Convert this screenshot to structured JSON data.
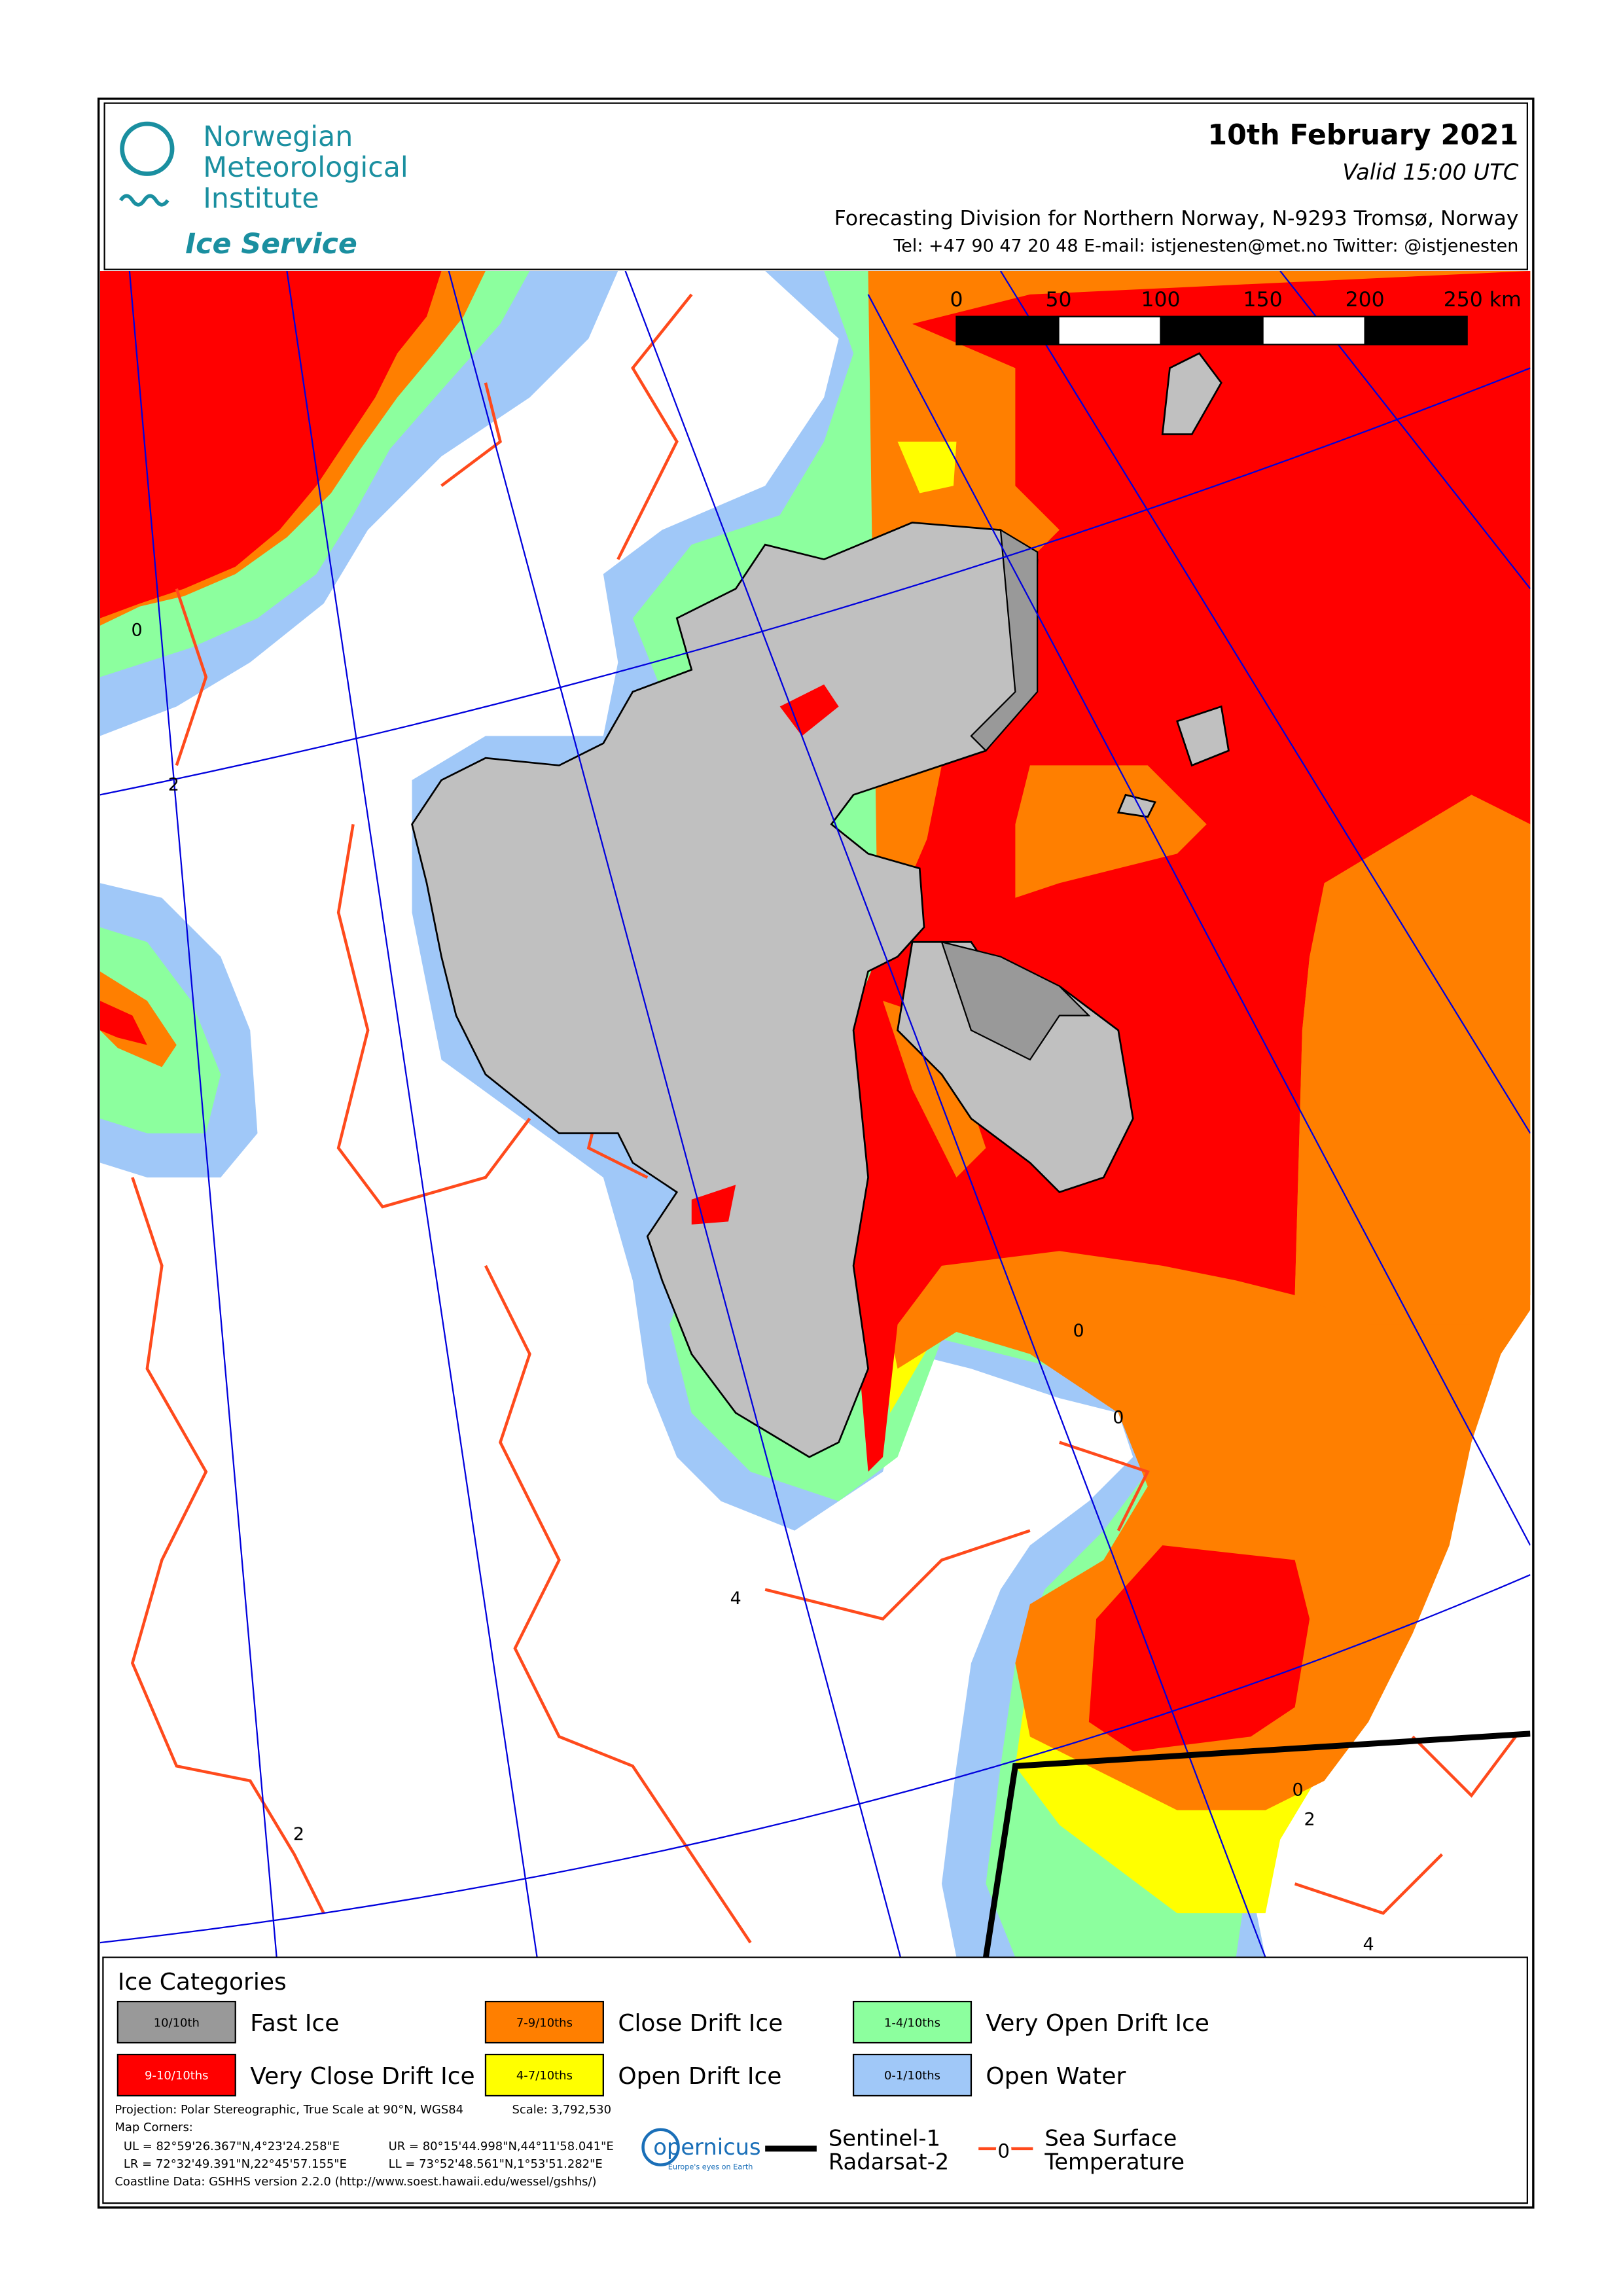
{
  "header": {
    "org": [
      "Norwegian",
      "Meteorological",
      "Institute"
    ],
    "service": "Ice Service",
    "date": "10th February 2021",
    "valid": "Valid 15:00 UTC",
    "division": "Forecasting Division for Northern Norway, N-9293 Tromsø, Norway",
    "contact": "Tel: +47 90 47 20 48   E-mail: istjenesten@met.no   Twitter: @istjenesten"
  },
  "scale_bar": {
    "labels": [
      "0",
      "50",
      "100",
      "150",
      "200",
      "250 km"
    ]
  },
  "map": {
    "contour_labels": [
      "0",
      "2",
      "0",
      "0",
      "4",
      "2",
      "0",
      "2",
      "4"
    ]
  },
  "legend": {
    "title": "Ice Categories",
    "items": [
      {
        "code": "10/10th",
        "name": "Fast Ice",
        "color": "#999999"
      },
      {
        "code": "7-9/10ths",
        "name": "Close Drift Ice",
        "color": "#ff7f00"
      },
      {
        "code": "1-4/10ths",
        "name": "Very Open Drift Ice",
        "color": "#8cff9e"
      },
      {
        "code": "9-10/10ths",
        "name": "Very Close Drift Ice",
        "color": "#ff0000"
      },
      {
        "code": "4-7/10ths",
        "name": "Open Drift Ice",
        "color": "#ffff00"
      },
      {
        "code": "0-1/10ths",
        "name": "Open Water",
        "color": "#a0c8f8"
      }
    ],
    "projection": "Projection: Polar Stereographic, True Scale at 90°N, WGS84",
    "scale": "Scale: 3,792,530",
    "corners_title": "Map Corners:",
    "corners": [
      "UL = 82°59'26.367\"N,4°23'24.258\"E",
      "UR = 80°15'44.998\"N,44°11'58.041\"E",
      "LR = 72°32'49.391\"N,22°45'57.155\"E",
      "LL = 73°52'48.561\"N,1°53'51.282\"E"
    ],
    "coastline": "Coastline Data: GSHHS version 2.2.0 (http://www.soest.hawaii.edu/wessel/gshhs/)",
    "logo": "opernicus",
    "logo_sub": "Europe's eyes on Earth",
    "lines": [
      "Sentinel-1",
      "Radarsat-2"
    ],
    "sst_symbol": "0",
    "sst": [
      "Sea Surface",
      "Temperature"
    ]
  }
}
